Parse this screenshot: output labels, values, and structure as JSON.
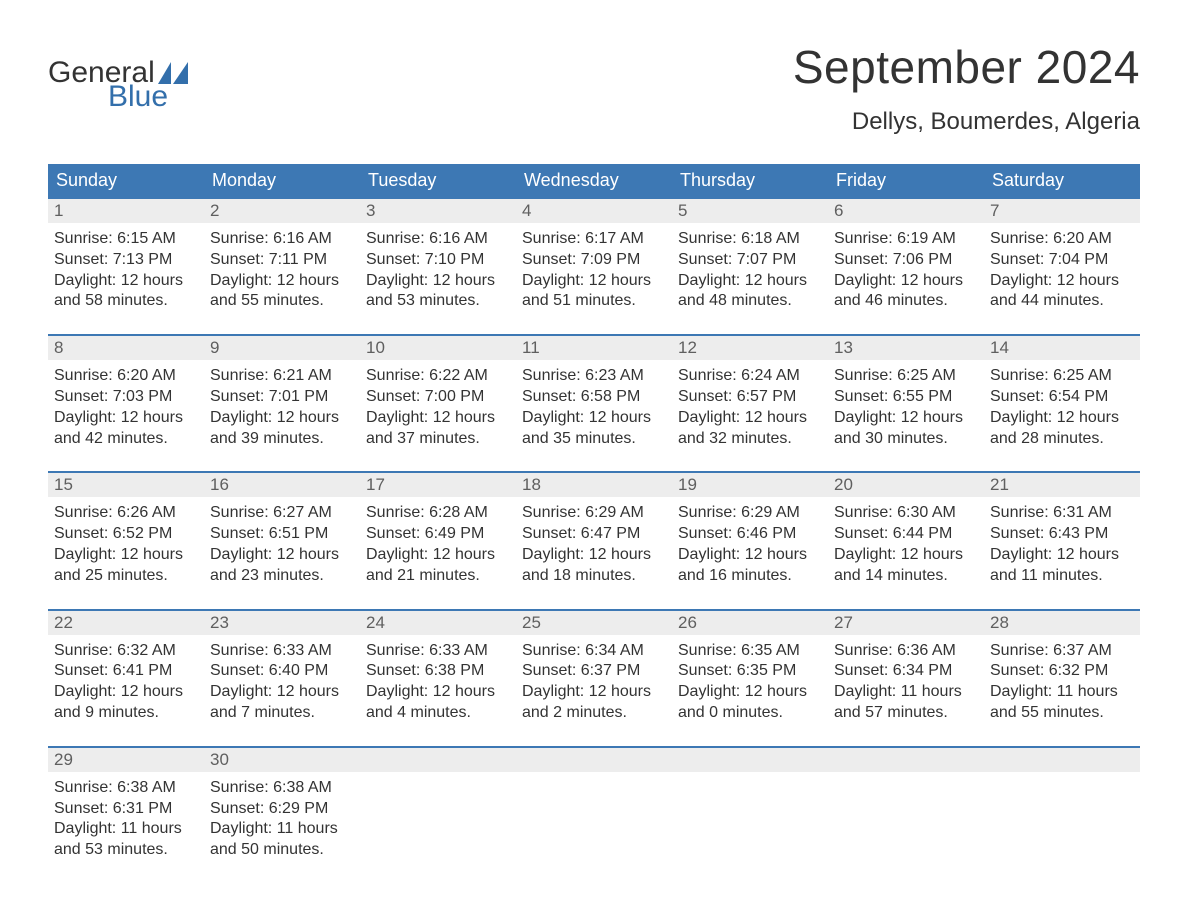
{
  "logo": {
    "word1": "General",
    "word2": "Blue",
    "accent_color": "#336fab"
  },
  "title": "September 2024",
  "location": "Dellys, Boumerdes, Algeria",
  "header_bg": "#3d78b4",
  "daynum_bg": "#ededed",
  "text_color": "#333333",
  "days_of_week": [
    "Sunday",
    "Monday",
    "Tuesday",
    "Wednesday",
    "Thursday",
    "Friday",
    "Saturday"
  ],
  "weeks": [
    [
      {
        "n": "1",
        "sr": "6:15 AM",
        "ss": "7:13 PM",
        "dl": "12 hours and 58 minutes."
      },
      {
        "n": "2",
        "sr": "6:16 AM",
        "ss": "7:11 PM",
        "dl": "12 hours and 55 minutes."
      },
      {
        "n": "3",
        "sr": "6:16 AM",
        "ss": "7:10 PM",
        "dl": "12 hours and 53 minutes."
      },
      {
        "n": "4",
        "sr": "6:17 AM",
        "ss": "7:09 PM",
        "dl": "12 hours and 51 minutes."
      },
      {
        "n": "5",
        "sr": "6:18 AM",
        "ss": "7:07 PM",
        "dl": "12 hours and 48 minutes."
      },
      {
        "n": "6",
        "sr": "6:19 AM",
        "ss": "7:06 PM",
        "dl": "12 hours and 46 minutes."
      },
      {
        "n": "7",
        "sr": "6:20 AM",
        "ss": "7:04 PM",
        "dl": "12 hours and 44 minutes."
      }
    ],
    [
      {
        "n": "8",
        "sr": "6:20 AM",
        "ss": "7:03 PM",
        "dl": "12 hours and 42 minutes."
      },
      {
        "n": "9",
        "sr": "6:21 AM",
        "ss": "7:01 PM",
        "dl": "12 hours and 39 minutes."
      },
      {
        "n": "10",
        "sr": "6:22 AM",
        "ss": "7:00 PM",
        "dl": "12 hours and 37 minutes."
      },
      {
        "n": "11",
        "sr": "6:23 AM",
        "ss": "6:58 PM",
        "dl": "12 hours and 35 minutes."
      },
      {
        "n": "12",
        "sr": "6:24 AM",
        "ss": "6:57 PM",
        "dl": "12 hours and 32 minutes."
      },
      {
        "n": "13",
        "sr": "6:25 AM",
        "ss": "6:55 PM",
        "dl": "12 hours and 30 minutes."
      },
      {
        "n": "14",
        "sr": "6:25 AM",
        "ss": "6:54 PM",
        "dl": "12 hours and 28 minutes."
      }
    ],
    [
      {
        "n": "15",
        "sr": "6:26 AM",
        "ss": "6:52 PM",
        "dl": "12 hours and 25 minutes."
      },
      {
        "n": "16",
        "sr": "6:27 AM",
        "ss": "6:51 PM",
        "dl": "12 hours and 23 minutes."
      },
      {
        "n": "17",
        "sr": "6:28 AM",
        "ss": "6:49 PM",
        "dl": "12 hours and 21 minutes."
      },
      {
        "n": "18",
        "sr": "6:29 AM",
        "ss": "6:47 PM",
        "dl": "12 hours and 18 minutes."
      },
      {
        "n": "19",
        "sr": "6:29 AM",
        "ss": "6:46 PM",
        "dl": "12 hours and 16 minutes."
      },
      {
        "n": "20",
        "sr": "6:30 AM",
        "ss": "6:44 PM",
        "dl": "12 hours and 14 minutes."
      },
      {
        "n": "21",
        "sr": "6:31 AM",
        "ss": "6:43 PM",
        "dl": "12 hours and 11 minutes."
      }
    ],
    [
      {
        "n": "22",
        "sr": "6:32 AM",
        "ss": "6:41 PM",
        "dl": "12 hours and 9 minutes."
      },
      {
        "n": "23",
        "sr": "6:33 AM",
        "ss": "6:40 PM",
        "dl": "12 hours and 7 minutes."
      },
      {
        "n": "24",
        "sr": "6:33 AM",
        "ss": "6:38 PM",
        "dl": "12 hours and 4 minutes."
      },
      {
        "n": "25",
        "sr": "6:34 AM",
        "ss": "6:37 PM",
        "dl": "12 hours and 2 minutes."
      },
      {
        "n": "26",
        "sr": "6:35 AM",
        "ss": "6:35 PM",
        "dl": "12 hours and 0 minutes."
      },
      {
        "n": "27",
        "sr": "6:36 AM",
        "ss": "6:34 PM",
        "dl": "11 hours and 57 minutes."
      },
      {
        "n": "28",
        "sr": "6:37 AM",
        "ss": "6:32 PM",
        "dl": "11 hours and 55 minutes."
      }
    ],
    [
      {
        "n": "29",
        "sr": "6:38 AM",
        "ss": "6:31 PM",
        "dl": "11 hours and 53 minutes."
      },
      {
        "n": "30",
        "sr": "6:38 AM",
        "ss": "6:29 PM",
        "dl": "11 hours and 50 minutes."
      },
      null,
      null,
      null,
      null,
      null
    ]
  ],
  "labels": {
    "sunrise": "Sunrise: ",
    "sunset": "Sunset: ",
    "daylight": "Daylight: "
  }
}
